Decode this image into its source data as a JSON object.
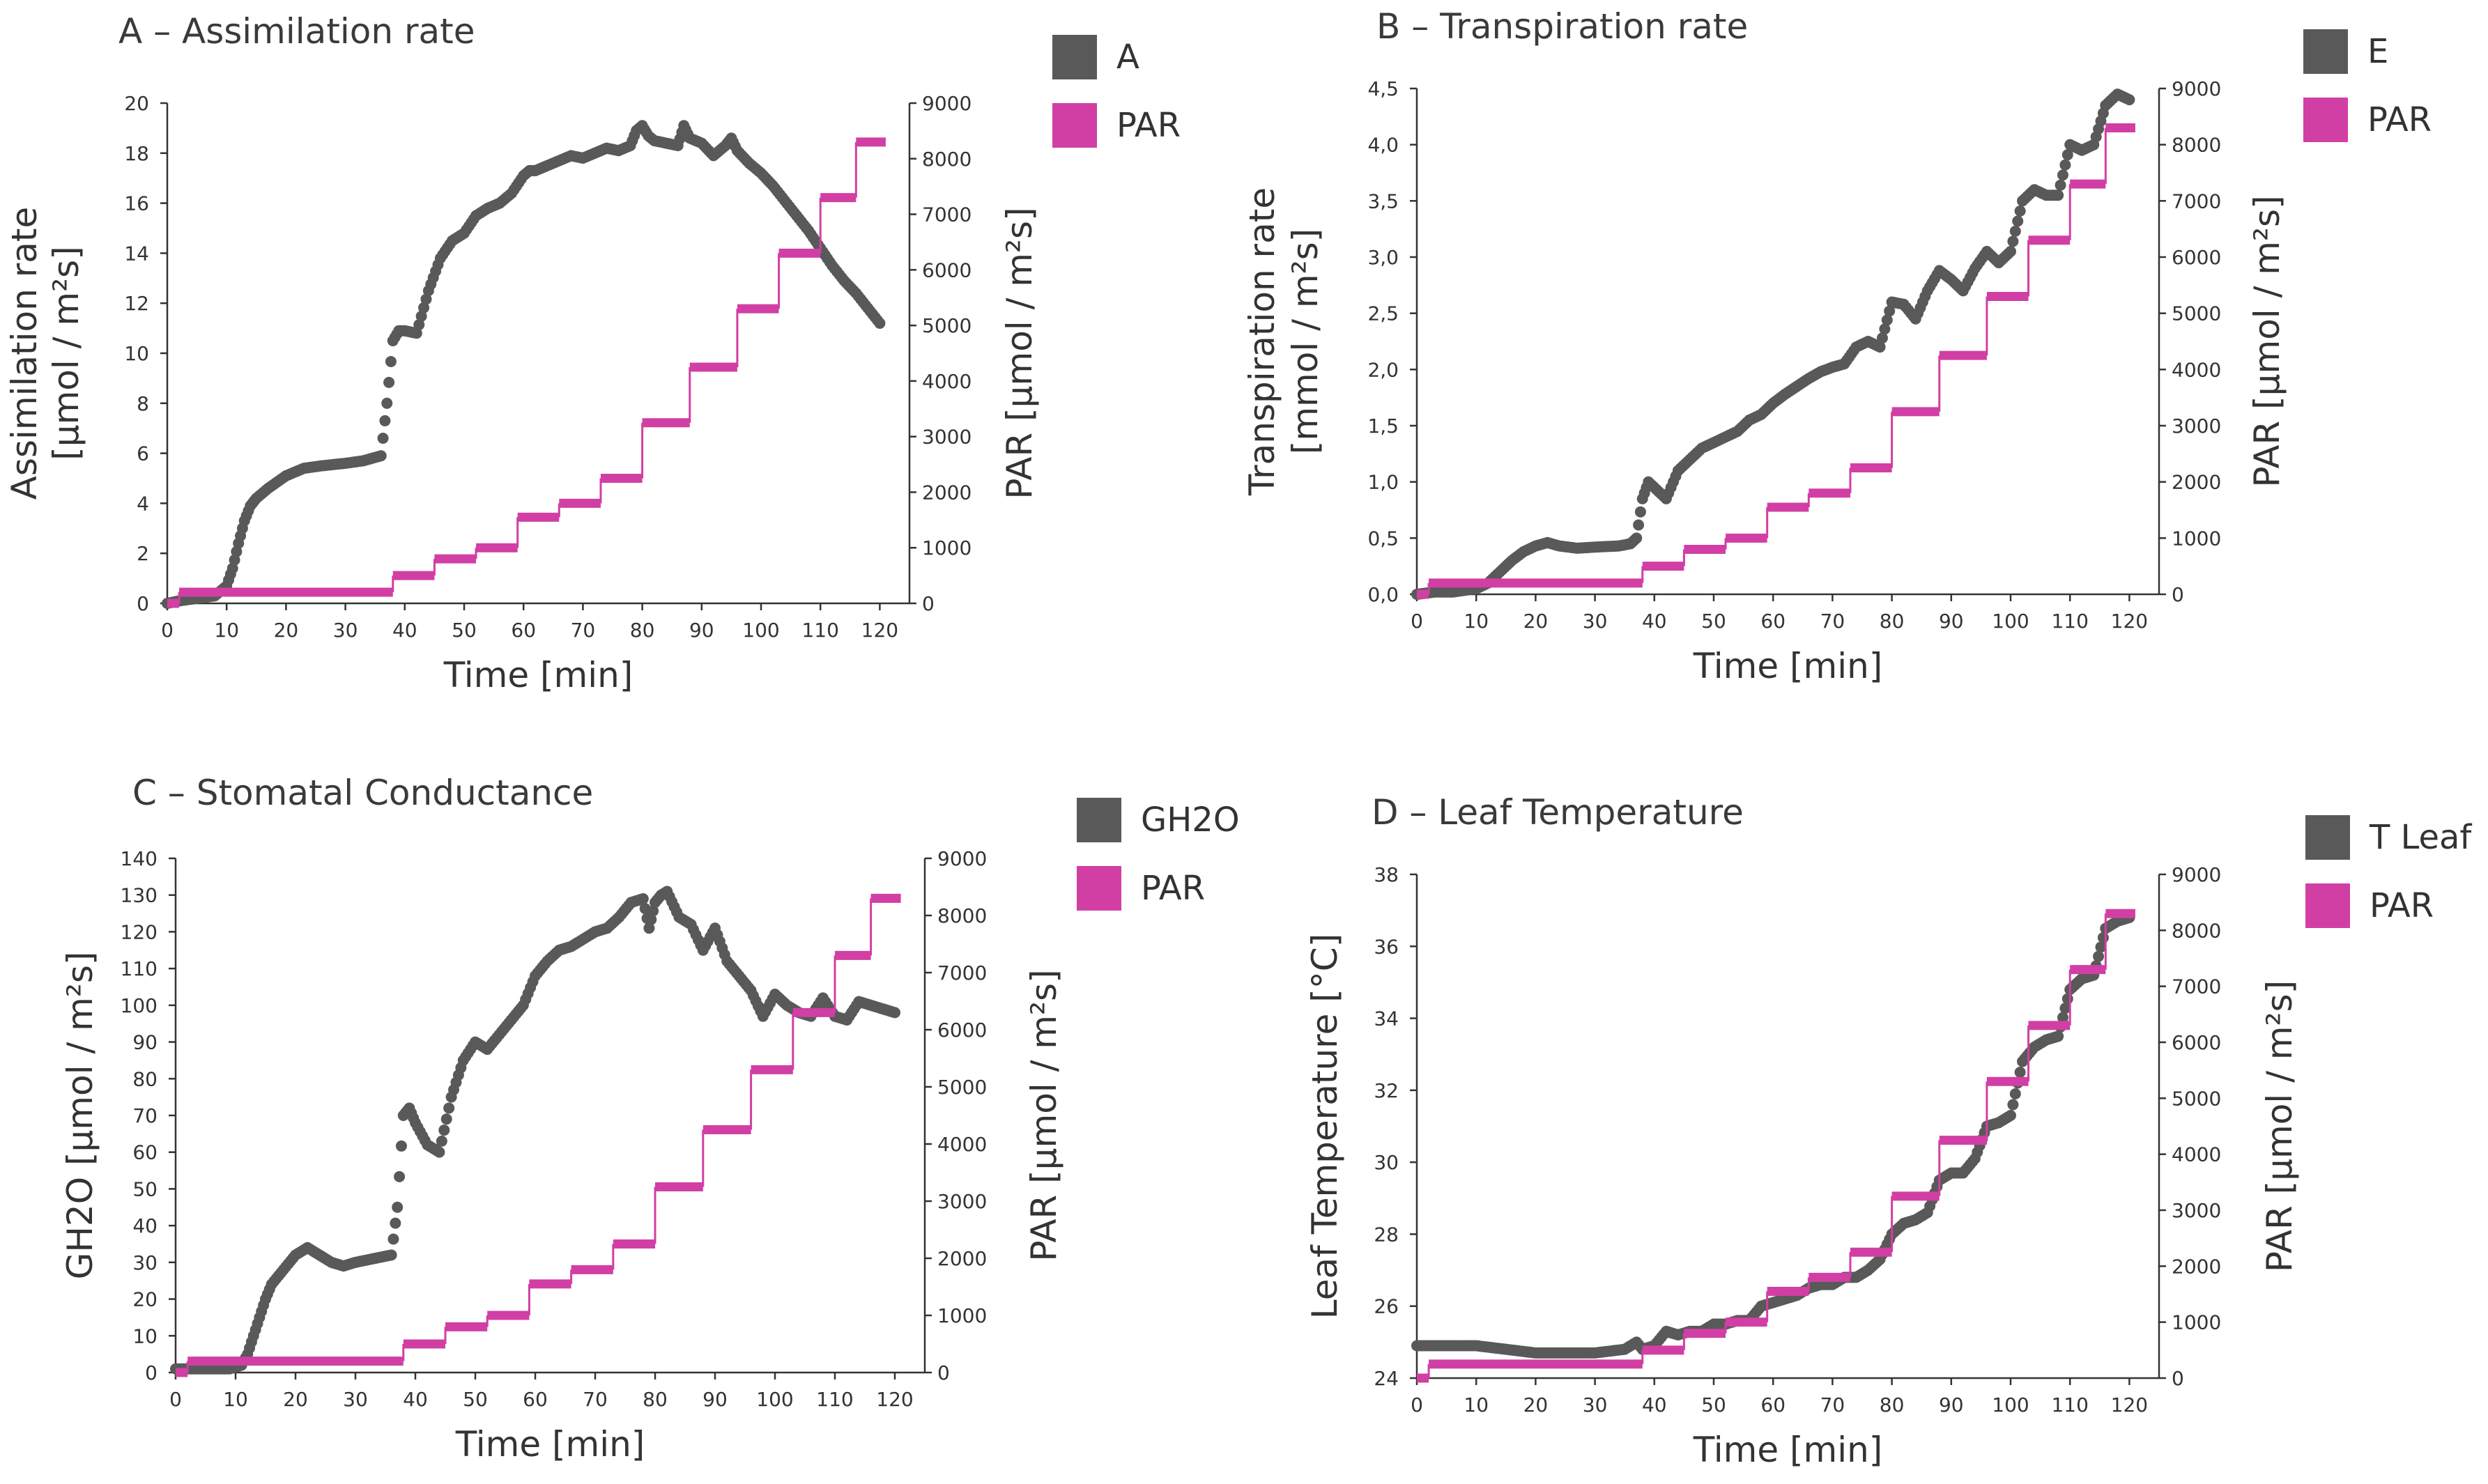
{
  "colors": {
    "primary_series": "#595959",
    "par": "#d13fa4"
  },
  "chart_data": [
    {
      "panel": "A",
      "type": "line",
      "title": "A – Assimilation rate",
      "xlabel": "Time [min]",
      "ylabel_line1": "Assimilation rate",
      "ylabel_line2": "[µmol / m²s]",
      "y2label": "PAR [µmol / m²s]",
      "xlim": [
        0,
        125
      ],
      "xticks": [
        "0",
        "10",
        "20",
        "30",
        "40",
        "50",
        "60",
        "70",
        "80",
        "90",
        "100",
        "110",
        "120"
      ],
      "ylim": [
        0,
        20
      ],
      "yticks": [
        "0",
        "2",
        "4",
        "6",
        "8",
        "10",
        "12",
        "14",
        "16",
        "18",
        "20"
      ],
      "y2lim": [
        0,
        9000
      ],
      "y2ticks": [
        "0",
        "1000",
        "2000",
        "3000",
        "4000",
        "5000",
        "6000",
        "7000",
        "8000",
        "9000"
      ],
      "legend": [
        "A",
        "PAR"
      ],
      "series": [
        {
          "name": "A",
          "axis": "left",
          "marker": "dots",
          "x": [
            0,
            2,
            5,
            8,
            10,
            11,
            12,
            13,
            14,
            15,
            17,
            20,
            23,
            26,
            30,
            33,
            36,
            37,
            38,
            39,
            40,
            42,
            44,
            46,
            48,
            50,
            52,
            54,
            55,
            56,
            58,
            60,
            61,
            62,
            64,
            66,
            68,
            70,
            72,
            74,
            76,
            78,
            79,
            80,
            81,
            82,
            84,
            86,
            87,
            88,
            90,
            92,
            94,
            95,
            96,
            98,
            100,
            102,
            104,
            106,
            108,
            110,
            112,
            114,
            116,
            118,
            120
          ],
          "y": [
            0,
            0.1,
            0.2,
            0.3,
            0.7,
            1.4,
            2.4,
            3.3,
            3.9,
            4.2,
            4.6,
            5.1,
            5.4,
            5.5,
            5.6,
            5.7,
            5.9,
            8,
            10.5,
            10.9,
            10.9,
            10.8,
            12.5,
            13.8,
            14.5,
            14.8,
            15.5,
            15.8,
            15.9,
            16,
            16.4,
            17.1,
            17.3,
            17.3,
            17.5,
            17.7,
            17.9,
            17.8,
            18,
            18.2,
            18.1,
            18.3,
            18.9,
            19.1,
            18.7,
            18.5,
            18.4,
            18.3,
            19.1,
            18.6,
            18.4,
            17.9,
            18.3,
            18.6,
            18.1,
            17.6,
            17.2,
            16.7,
            16.1,
            15.5,
            14.9,
            14.2,
            13.5,
            12.9,
            12.4,
            11.8,
            11.2
          ]
        },
        {
          "name": "PAR",
          "axis": "right",
          "marker": "step",
          "steps": [
            {
              "x_start": 0,
              "x_end": 2,
              "value": 0
            },
            {
              "x_start": 2,
              "x_end": 38,
              "value": 200
            },
            {
              "x_start": 38,
              "x_end": 45,
              "value": 500
            },
            {
              "x_start": 45,
              "x_end": 52,
              "value": 800
            },
            {
              "x_start": 52,
              "x_end": 59,
              "value": 1000
            },
            {
              "x_start": 59,
              "x_end": 66,
              "value": 1550
            },
            {
              "x_start": 66,
              "x_end": 73,
              "value": 1800
            },
            {
              "x_start": 73,
              "x_end": 80,
              "value": 2250
            },
            {
              "x_start": 80,
              "x_end": 88,
              "value": 3250
            },
            {
              "x_start": 88,
              "x_end": 96,
              "value": 4250
            },
            {
              "x_start": 96,
              "x_end": 103,
              "value": 5300
            },
            {
              "x_start": 103,
              "x_end": 110,
              "value": 6300
            },
            {
              "x_start": 110,
              "x_end": 116,
              "value": 7300
            },
            {
              "x_start": 116,
              "x_end": 121,
              "value": 8300
            }
          ]
        }
      ]
    },
    {
      "panel": "B",
      "type": "line",
      "title": "B – Transpiration rate",
      "xlabel": "Time [min]",
      "ylabel_line1": "Transpiration rate",
      "ylabel_line2": "[mmol / m²s]",
      "y2label": "PAR [µmol / m²s]",
      "xlim": [
        0,
        125
      ],
      "xticks": [
        "0",
        "10",
        "20",
        "30",
        "40",
        "50",
        "60",
        "70",
        "80",
        "90",
        "100",
        "110",
        "120"
      ],
      "ylim": [
        0,
        4.5
      ],
      "yticks": [
        "0,0",
        "0,5",
        "1,0",
        "1,5",
        "2,0",
        "2,5",
        "3,0",
        "3,5",
        "4,0",
        "4,5"
      ],
      "y2lim": [
        0,
        9000
      ],
      "y2ticks": [
        "0",
        "1000",
        "2000",
        "3000",
        "4000",
        "5000",
        "6000",
        "7000",
        "8000",
        "9000"
      ],
      "legend": [
        "E",
        "PAR"
      ],
      "series": [
        {
          "name": "E",
          "axis": "left",
          "marker": "dots",
          "x": [
            0,
            3,
            6,
            10,
            12,
            14,
            16,
            18,
            20,
            22,
            24,
            27,
            30,
            34,
            36,
            37,
            38,
            39,
            40,
            42,
            44,
            46,
            48,
            50,
            52,
            54,
            56,
            58,
            60,
            62,
            64,
            66,
            68,
            70,
            72,
            74,
            76,
            78,
            80,
            82,
            84,
            86,
            88,
            90,
            92,
            94,
            96,
            98,
            100,
            102,
            104,
            106,
            108,
            110,
            112,
            114,
            116,
            118,
            120
          ],
          "y": [
            0.0,
            0.02,
            0.02,
            0.05,
            0.1,
            0.2,
            0.3,
            0.38,
            0.43,
            0.46,
            0.43,
            0.41,
            0.42,
            0.43,
            0.45,
            0.5,
            0.85,
            1.0,
            0.95,
            0.85,
            1.1,
            1.2,
            1.3,
            1.35,
            1.4,
            1.45,
            1.55,
            1.6,
            1.7,
            1.78,
            1.85,
            1.92,
            1.98,
            2.02,
            2.05,
            2.2,
            2.25,
            2.2,
            2.6,
            2.58,
            2.45,
            2.7,
            2.88,
            2.8,
            2.7,
            2.9,
            3.05,
            2.95,
            3.05,
            3.5,
            3.6,
            3.55,
            3.55,
            4.0,
            3.95,
            4.0,
            4.35,
            4.45,
            4.4
          ]
        },
        {
          "name": "PAR",
          "axis": "right",
          "marker": "step",
          "steps": [
            {
              "x_start": 0,
              "x_end": 2,
              "value": 0
            },
            {
              "x_start": 2,
              "x_end": 38,
              "value": 200
            },
            {
              "x_start": 38,
              "x_end": 45,
              "value": 500
            },
            {
              "x_start": 45,
              "x_end": 52,
              "value": 800
            },
            {
              "x_start": 52,
              "x_end": 59,
              "value": 1000
            },
            {
              "x_start": 59,
              "x_end": 66,
              "value": 1550
            },
            {
              "x_start": 66,
              "x_end": 73,
              "value": 1800
            },
            {
              "x_start": 73,
              "x_end": 80,
              "value": 2250
            },
            {
              "x_start": 80,
              "x_end": 88,
              "value": 3250
            },
            {
              "x_start": 88,
              "x_end": 96,
              "value": 4250
            },
            {
              "x_start": 96,
              "x_end": 103,
              "value": 5300
            },
            {
              "x_start": 103,
              "x_end": 110,
              "value": 6300
            },
            {
              "x_start": 110,
              "x_end": 116,
              "value": 7300
            },
            {
              "x_start": 116,
              "x_end": 121,
              "value": 8300
            }
          ]
        }
      ]
    },
    {
      "panel": "C",
      "type": "line",
      "title": "C – Stomatal Conductance",
      "xlabel": "Time [min]",
      "ylabel_line1": "GH2O [µmol / m²s]",
      "ylabel_line2": "",
      "y2label": "PAR [µmol / m²s]",
      "xlim": [
        0,
        125
      ],
      "xticks": [
        "0",
        "10",
        "20",
        "30",
        "40",
        "50",
        "60",
        "70",
        "80",
        "90",
        "100",
        "110",
        "120"
      ],
      "ylim": [
        0,
        140
      ],
      "yticks": [
        "0",
        "10",
        "20",
        "30",
        "40",
        "50",
        "60",
        "70",
        "80",
        "90",
        "100",
        "110",
        "120",
        "130",
        "140"
      ],
      "y2lim": [
        0,
        9000
      ],
      "y2ticks": [
        "0",
        "1000",
        "2000",
        "3000",
        "4000",
        "5000",
        "6000",
        "7000",
        "8000",
        "9000"
      ],
      "legend": [
        "GH2O",
        "PAR"
      ],
      "series": [
        {
          "name": "GH2O",
          "axis": "left",
          "marker": "dots",
          "x": [
            0,
            3,
            6,
            9,
            11,
            12,
            13,
            14,
            15,
            16,
            18,
            20,
            22,
            24,
            26,
            28,
            30,
            33,
            36,
            37,
            38,
            39,
            40,
            42,
            44,
            46,
            48,
            50,
            52,
            54,
            56,
            58,
            60,
            62,
            64,
            66,
            68,
            70,
            72,
            74,
            76,
            78,
            79,
            80,
            81,
            82,
            84,
            86,
            88,
            90,
            92,
            94,
            96,
            98,
            100,
            102,
            104,
            106,
            108,
            110,
            112,
            114,
            116,
            118,
            120
          ],
          "y": [
            1,
            1,
            1,
            1,
            2,
            5,
            10,
            15,
            20,
            24,
            28,
            32,
            34,
            32,
            30,
            29,
            30,
            31,
            32,
            45,
            70,
            72,
            68,
            62,
            60,
            75,
            85,
            90,
            88,
            92,
            96,
            100,
            108,
            112,
            115,
            116,
            118,
            120,
            121,
            124,
            128,
            129,
            121,
            128,
            130,
            131,
            124,
            122,
            115,
            121,
            112,
            108,
            104,
            97,
            103,
            100,
            98,
            97,
            102,
            97,
            96,
            101,
            100,
            99,
            98
          ]
        },
        {
          "name": "PAR",
          "axis": "right",
          "marker": "step",
          "steps": [
            {
              "x_start": 0,
              "x_end": 2,
              "value": 0
            },
            {
              "x_start": 2,
              "x_end": 38,
              "value": 200
            },
            {
              "x_start": 38,
              "x_end": 45,
              "value": 500
            },
            {
              "x_start": 45,
              "x_end": 52,
              "value": 800
            },
            {
              "x_start": 52,
              "x_end": 59,
              "value": 1000
            },
            {
              "x_start": 59,
              "x_end": 66,
              "value": 1550
            },
            {
              "x_start": 66,
              "x_end": 73,
              "value": 1800
            },
            {
              "x_start": 73,
              "x_end": 80,
              "value": 2250
            },
            {
              "x_start": 80,
              "x_end": 88,
              "value": 3250
            },
            {
              "x_start": 88,
              "x_end": 96,
              "value": 4250
            },
            {
              "x_start": 96,
              "x_end": 103,
              "value": 5300
            },
            {
              "x_start": 103,
              "x_end": 110,
              "value": 6300
            },
            {
              "x_start": 110,
              "x_end": 116,
              "value": 7300
            },
            {
              "x_start": 116,
              "x_end": 121,
              "value": 8300
            }
          ]
        }
      ]
    },
    {
      "panel": "D",
      "type": "line",
      "title": "D – Leaf Temperature",
      "xlabel": "Time [min]",
      "ylabel_line1": "Leaf Temperature [°C]",
      "ylabel_line2": "",
      "y2label": "PAR [µmol / m²s]",
      "xlim": [
        0,
        125
      ],
      "xticks": [
        "0",
        "10",
        "20",
        "30",
        "40",
        "50",
        "60",
        "70",
        "80",
        "90",
        "100",
        "110",
        "120"
      ],
      "ylim": [
        24,
        38
      ],
      "yticks": [
        "24",
        "26",
        "28",
        "30",
        "32",
        "34",
        "36",
        "38"
      ],
      "y2lim": [
        0,
        9000
      ],
      "y2ticks": [
        "0",
        "1000",
        "2000",
        "3000",
        "4000",
        "5000",
        "6000",
        "7000",
        "8000",
        "9000"
      ],
      "legend": [
        "T Leaf",
        "PAR"
      ],
      "series": [
        {
          "name": "T Leaf",
          "axis": "left",
          "marker": "dots",
          "x": [
            0,
            5,
            10,
            15,
            20,
            25,
            30,
            35,
            37,
            38,
            40,
            42,
            44,
            46,
            48,
            50,
            52,
            54,
            56,
            58,
            60,
            62,
            64,
            66,
            68,
            70,
            72,
            74,
            76,
            78,
            80,
            82,
            84,
            86,
            88,
            90,
            92,
            94,
            96,
            98,
            100,
            102,
            104,
            106,
            108,
            110,
            112,
            114,
            116,
            118,
            120
          ],
          "y": [
            24.9,
            24.9,
            24.9,
            24.8,
            24.7,
            24.7,
            24.7,
            24.8,
            25.0,
            24.8,
            24.9,
            25.3,
            25.2,
            25.3,
            25.3,
            25.5,
            25.5,
            25.6,
            25.6,
            26.0,
            26.1,
            26.2,
            26.3,
            26.5,
            26.6,
            26.6,
            26.8,
            26.8,
            27.0,
            27.3,
            28.0,
            28.3,
            28.4,
            28.6,
            29.5,
            29.7,
            29.7,
            30.1,
            31.0,
            31.1,
            31.3,
            32.8,
            33.2,
            33.4,
            33.5,
            34.8,
            35.1,
            35.2,
            36.5,
            36.7,
            36.8
          ]
        },
        {
          "name": "PAR",
          "axis": "right",
          "marker": "step",
          "steps": [
            {
              "x_start": 0,
              "x_end": 2,
              "value": 0
            },
            {
              "x_start": 2,
              "x_end": 38,
              "value": 250
            },
            {
              "x_start": 38,
              "x_end": 45,
              "value": 500
            },
            {
              "x_start": 45,
              "x_end": 52,
              "value": 800
            },
            {
              "x_start": 52,
              "x_end": 59,
              "value": 1000
            },
            {
              "x_start": 59,
              "x_end": 66,
              "value": 1550
            },
            {
              "x_start": 66,
              "x_end": 73,
              "value": 1800
            },
            {
              "x_start": 73,
              "x_end": 80,
              "value": 2250
            },
            {
              "x_start": 80,
              "x_end": 88,
              "value": 3250
            },
            {
              "x_start": 88,
              "x_end": 96,
              "value": 4250
            },
            {
              "x_start": 96,
              "x_end": 103,
              "value": 5300
            },
            {
              "x_start": 103,
              "x_end": 110,
              "value": 6300
            },
            {
              "x_start": 110,
              "x_end": 116,
              "value": 7300
            },
            {
              "x_start": 116,
              "x_end": 121,
              "value": 8300
            }
          ]
        }
      ]
    }
  ]
}
